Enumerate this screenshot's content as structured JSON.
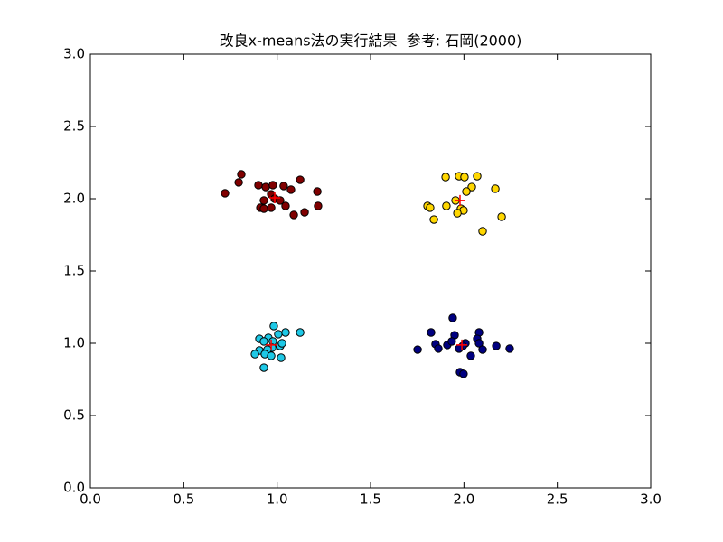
{
  "chart_data": {
    "type": "scatter",
    "title": "改良x-means法の実行結果  参考: 石岡(2000)",
    "xlim": [
      0,
      3
    ],
    "ylim": [
      0,
      3
    ],
    "xticks": [
      {
        "value": 0,
        "label": "0.0"
      },
      {
        "value": 0.5,
        "label": "0.5"
      },
      {
        "value": 1,
        "label": "1.0"
      },
      {
        "value": 1.5,
        "label": "1.5"
      },
      {
        "value": 2,
        "label": "2.0"
      },
      {
        "value": 2.5,
        "label": "2.5"
      },
      {
        "value": 3,
        "label": "3.0"
      }
    ],
    "yticks": [
      {
        "value": 0,
        "label": "0.0"
      },
      {
        "value": 0.5,
        "label": "0.5"
      },
      {
        "value": 1,
        "label": "1.0"
      },
      {
        "value": 1.5,
        "label": "1.5"
      },
      {
        "value": 2,
        "label": "2.0"
      },
      {
        "value": 2.5,
        "label": "2.5"
      },
      {
        "value": 3,
        "label": "3.0"
      }
    ],
    "grid": false,
    "series": [
      {
        "color": "#800000",
        "marker": "o",
        "x": [
          0.808,
          0.794,
          0.721,
          0.9,
          0.939,
          0.977,
          1.035,
          1.074,
          1.123,
          1.215,
          0.968,
          0.987,
          1.016,
          0.929,
          0.91,
          0.929,
          0.968,
          1.045,
          1.089,
          1.147,
          1.219
        ],
        "values": [
          2.169,
          2.113,
          2.038,
          2.094,
          2.081,
          2.094,
          2.088,
          2.063,
          2.131,
          2.05,
          2.031,
          2.0,
          1.988,
          1.988,
          1.938,
          1.931,
          1.938,
          1.95,
          1.888,
          1.906,
          1.95
        ]
      },
      {
        "color": "#ffd700",
        "marker": "o",
        "x": [
          1.902,
          1.974,
          2.003,
          2.071,
          2.168,
          2.042,
          2.013,
          1.955,
          1.906,
          1.805,
          1.819,
          1.984,
          1.998,
          1.965,
          1.839,
          2.202,
          2.1
        ],
        "values": [
          2.15,
          2.156,
          2.15,
          2.156,
          2.069,
          2.081,
          2.05,
          1.988,
          1.95,
          1.95,
          1.938,
          1.931,
          1.919,
          1.9,
          1.856,
          1.875,
          1.775
        ]
      },
      {
        "color": "#1ec8e6",
        "marker": "o",
        "x": [
          0.982,
          1.006,
          1.045,
          1.123,
          0.953,
          0.905,
          0.929,
          0.977,
          1.016,
          1.026,
          0.973,
          0.948,
          0.905,
          0.881,
          0.934,
          0.968,
          1.021,
          0.929
        ],
        "values": [
          1.119,
          1.063,
          1.075,
          1.075,
          1.038,
          1.031,
          1.013,
          1.013,
          0.981,
          1.0,
          0.969,
          0.956,
          0.95,
          0.925,
          0.925,
          0.913,
          0.9,
          0.831
        ]
      },
      {
        "color": "#000080",
        "marker": "o",
        "x": [
          1.94,
          1.824,
          1.95,
          2.081,
          1.848,
          1.911,
          1.935,
          2.008,
          1.994,
          2.071,
          2.081,
          2.173,
          1.752,
          1.863,
          1.974,
          2.1,
          2.245,
          2.037,
          1.979,
          1.998
        ],
        "values": [
          1.175,
          1.075,
          1.056,
          1.075,
          0.994,
          0.988,
          1.013,
          1.0,
          0.981,
          1.031,
          1.0,
          0.981,
          0.956,
          0.963,
          0.963,
          0.956,
          0.963,
          0.913,
          0.8,
          0.788
        ]
      },
      {
        "color": "#ff0000",
        "marker": "+",
        "x": [
          0.987,
          1.979,
          0.968,
          1.989
        ],
        "values": [
          2.006,
          1.988,
          0.988,
          0.988
        ]
      }
    ]
  }
}
